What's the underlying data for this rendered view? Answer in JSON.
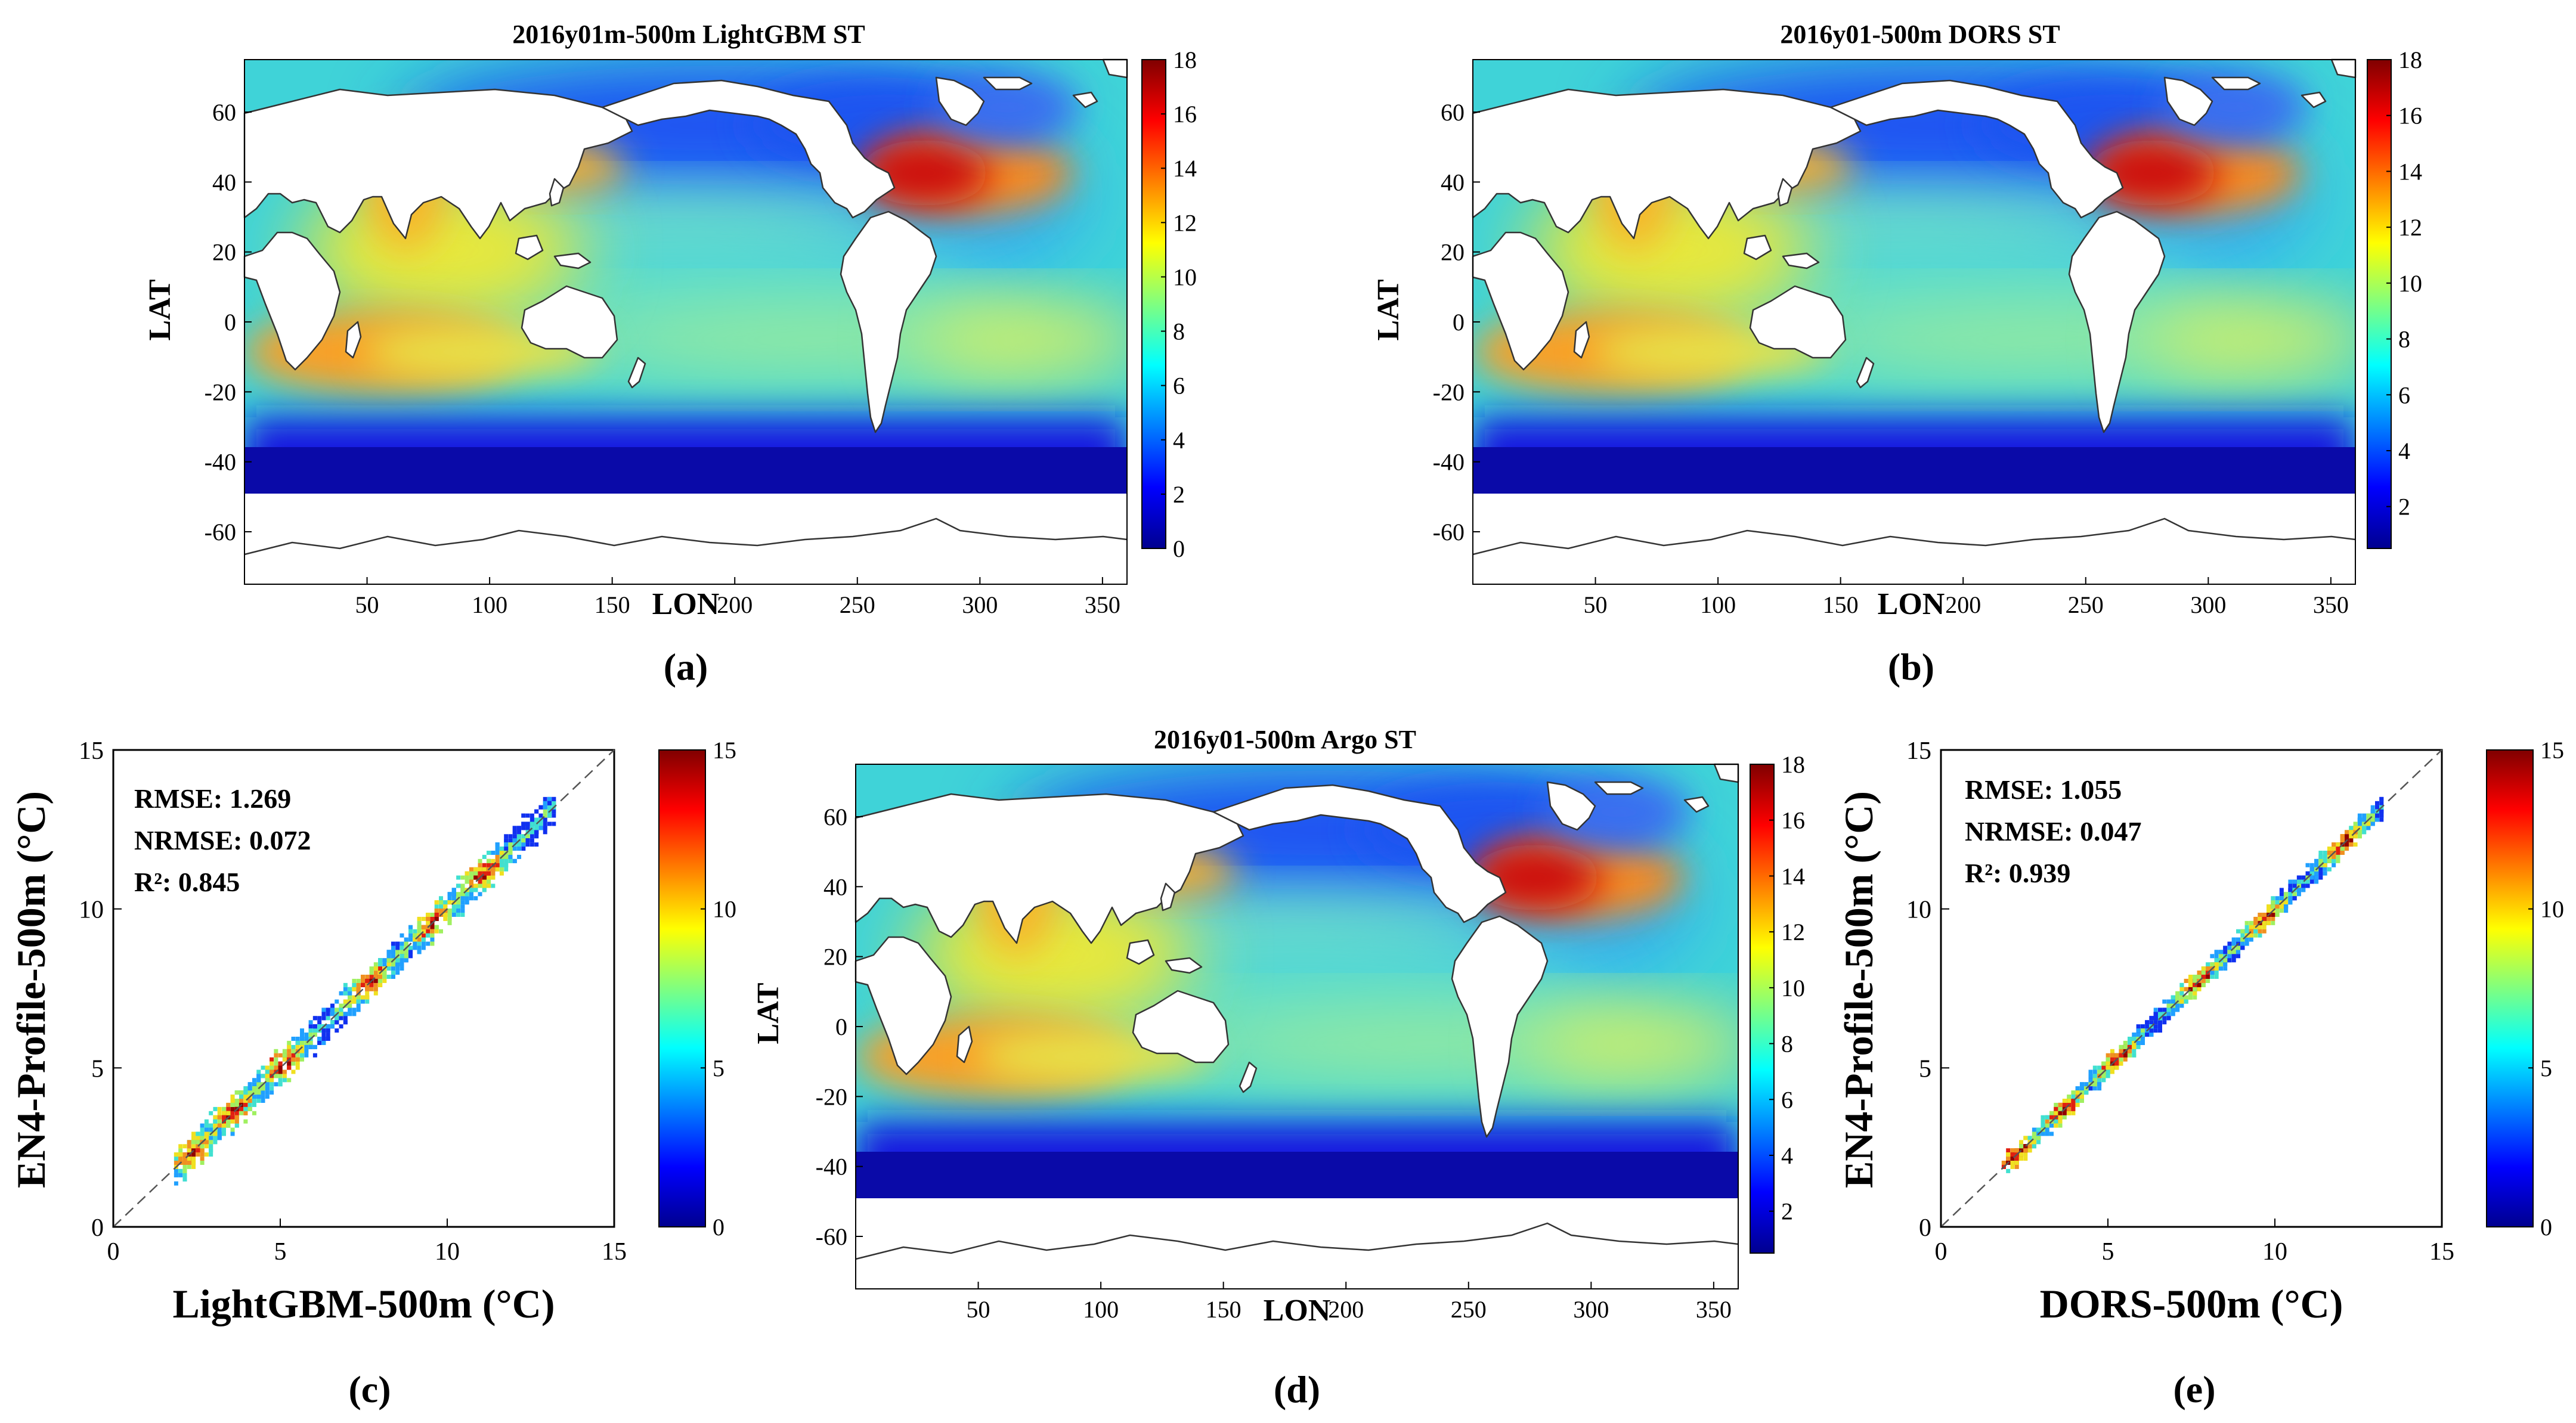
{
  "chart_data": [
    {
      "type": "heatmap",
      "panel": "(a)",
      "title": "2016y01m-500m LightGBM ST",
      "xlabel": "LON",
      "ylabel": "LAT",
      "xticks": [
        "50",
        "100",
        "150",
        "200",
        "250",
        "300",
        "350"
      ],
      "yticks": [
        "60",
        "40",
        "20",
        "0",
        "-20",
        "-40",
        "-60"
      ],
      "xlim": [
        0,
        360
      ],
      "ylim": [
        -75,
        75
      ],
      "colorbar": {
        "min": 0,
        "max": 18,
        "ticks": [
          "18",
          "16",
          "14",
          "12",
          "10",
          "8",
          "6",
          "4",
          "2",
          "0"
        ]
      },
      "masked_below_lat": -60
    },
    {
      "type": "heatmap",
      "panel": "(b)",
      "title": "2016y01-500m DORS ST",
      "xlabel": "LON",
      "ylabel": "LAT",
      "xticks": [
        "50",
        "100",
        "150",
        "200",
        "250",
        "300",
        "350"
      ],
      "yticks": [
        "60",
        "40",
        "20",
        "0",
        "-20",
        "-40",
        "-60"
      ],
      "xlim": [
        0,
        360
      ],
      "ylim": [
        -75,
        75
      ],
      "colorbar": {
        "min": 0.5,
        "max": 18,
        "ticks": [
          "18",
          "16",
          "14",
          "12",
          "10",
          "8",
          "6",
          "4",
          "2"
        ]
      },
      "masked_below_lat": -60
    },
    {
      "type": "scatter",
      "panel": "(c)",
      "title": "",
      "xlabel": "LightGBM-500m (°C)",
      "ylabel": "EN4-Profile-500m (°C)",
      "xlim": [
        0,
        15
      ],
      "ylim": [
        0,
        15
      ],
      "xticks": [
        "0",
        "5",
        "10",
        "15"
      ],
      "yticks": [
        "15",
        "10",
        "5",
        "0"
      ],
      "stats": [
        "RMSE: 1.269",
        "NRMSE: 0.072",
        "R²: 0.845"
      ],
      "colorbar": {
        "min": 0,
        "max": 15,
        "ticks": [
          "15",
          "10",
          "5",
          "0"
        ]
      },
      "density_centers": [
        [
          2.3,
          2.3
        ],
        [
          3.5,
          3.6
        ],
        [
          5.0,
          5.1
        ],
        [
          7.6,
          7.6
        ],
        [
          9.5,
          9.6
        ],
        [
          11.0,
          11.1
        ]
      ]
    },
    {
      "type": "heatmap",
      "panel": "(d)",
      "title": "2016y01-500m Argo ST",
      "xlabel": "LON",
      "ylabel": "LAT",
      "xticks": [
        "50",
        "100",
        "150",
        "200",
        "250",
        "300",
        "350"
      ],
      "yticks": [
        "60",
        "40",
        "20",
        "0",
        "-20",
        "-40",
        "-60"
      ],
      "xlim": [
        0,
        360
      ],
      "ylim": [
        -75,
        75
      ],
      "colorbar": {
        "min": 0.5,
        "max": 18,
        "ticks": [
          "18",
          "16",
          "14",
          "12",
          "10",
          "8",
          "6",
          "4",
          "2"
        ]
      },
      "masked_below_lat": -60
    },
    {
      "type": "scatter",
      "panel": "(e)",
      "title": "",
      "xlabel": "DORS-500m (°C)",
      "ylabel": "EN4-Profile-500m (°C)",
      "xlim": [
        0,
        15
      ],
      "ylim": [
        0,
        15
      ],
      "xticks": [
        "0",
        "5",
        "10",
        "15"
      ],
      "yticks": [
        "15",
        "10",
        "5",
        "0"
      ],
      "stats": [
        "RMSE: 1.055",
        "NRMSE: 0.047",
        "R²: 0.939"
      ],
      "colorbar": {
        "min": 0,
        "max": 15,
        "ticks": [
          "15",
          "10",
          "5",
          "0"
        ]
      },
      "density_centers": [
        [
          2.2,
          2.2
        ],
        [
          3.6,
          3.6
        ],
        [
          5.2,
          5.2
        ],
        [
          7.6,
          7.6
        ],
        [
          9.6,
          9.6
        ],
        [
          12.0,
          12.0
        ]
      ]
    }
  ]
}
